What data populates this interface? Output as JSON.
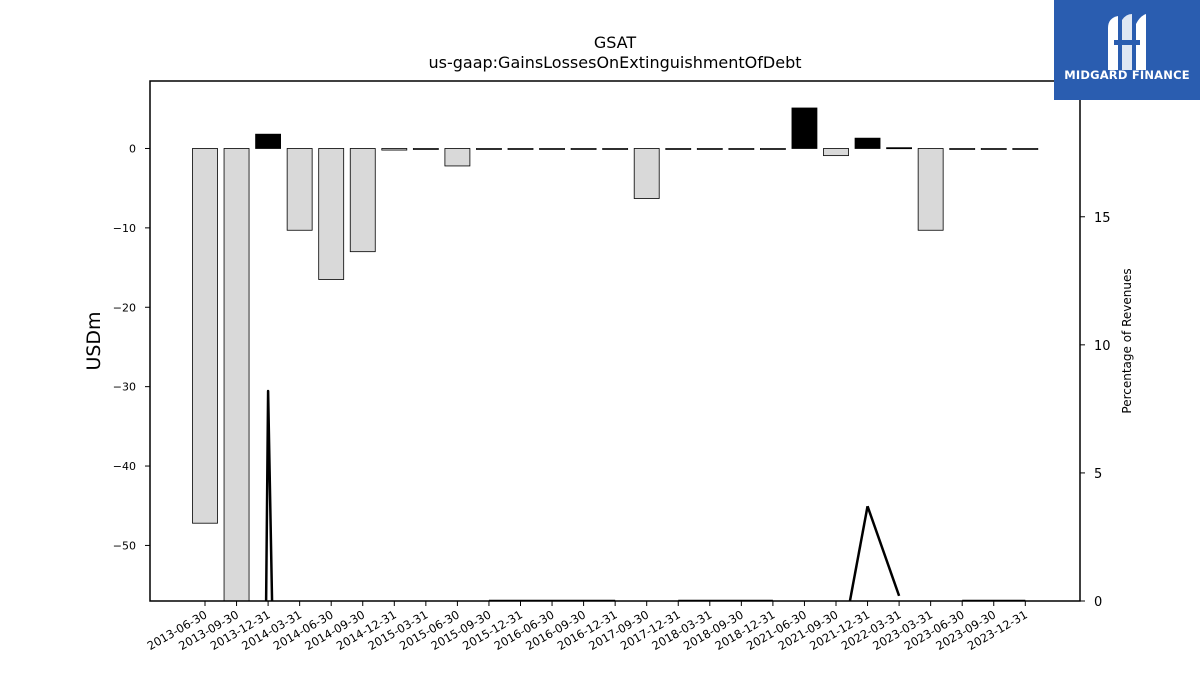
{
  "brand": {
    "name": "MIDGARD FINANCE",
    "logo_icon": "midgard-logo-icon",
    "color": "#2a5db0"
  },
  "chart_data": {
    "type": "bar",
    "title": "GSAT",
    "subtitle": "us-gaap:GainsLossesOnExtinguishmentOfDebt",
    "ylabel": "USDm",
    "y2label": "Percentage of Revenues",
    "ylim": [
      -57,
      8.5
    ],
    "y2lim": [
      0,
      20.3
    ],
    "yticks": [
      0,
      -10,
      -20,
      -30,
      -40,
      -50
    ],
    "y2ticks": [
      0,
      5,
      10,
      15,
      20
    ],
    "categories": [
      "2013-06-30",
      "2013-09-30",
      "2013-12-31",
      "2014-03-31",
      "2014-06-30",
      "2014-09-30",
      "2014-12-31",
      "2015-03-31",
      "2015-06-30",
      "2015-09-30",
      "2015-12-31",
      "2016-06-30",
      "2016-09-30",
      "2016-12-31",
      "2017-09-30",
      "2017-12-31",
      "2018-03-31",
      "2018-09-30",
      "2018-12-31",
      "2021-06-30",
      "2021-09-30",
      "2021-12-31",
      "2022-03-31",
      "2023-03-31",
      "2023-06-30",
      "2023-09-30",
      "2023-12-31"
    ],
    "series": [
      {
        "type": "bar",
        "values": [
          -47.2,
          -57.5,
          1.8,
          -10.3,
          -16.5,
          -13.0,
          -0.2,
          0.0,
          -2.2,
          0.0,
          0.0,
          0.0,
          0.0,
          0.0,
          -6.3,
          0.0,
          0.0,
          0.0,
          0.0,
          5.1,
          -0.9,
          1.3,
          0.1,
          -10.3,
          0.0,
          0.0,
          0.0
        ]
      },
      {
        "type": "line",
        "axis": "right",
        "values": [
          null,
          null,
          8.2,
          null,
          null,
          null,
          null,
          null,
          null,
          0.0,
          0.0,
          0.0,
          0.0,
          0.0,
          null,
          0.0,
          0.0,
          0.0,
          0.0,
          null,
          null,
          3.7,
          0.2,
          null,
          0.0,
          0.0,
          0.0
        ]
      }
    ],
    "colors": {
      "negative_bar": "#d9d9d9",
      "positive_bar": "#000000",
      "line": "#000000"
    },
    "grid": false,
    "legend": "none"
  }
}
